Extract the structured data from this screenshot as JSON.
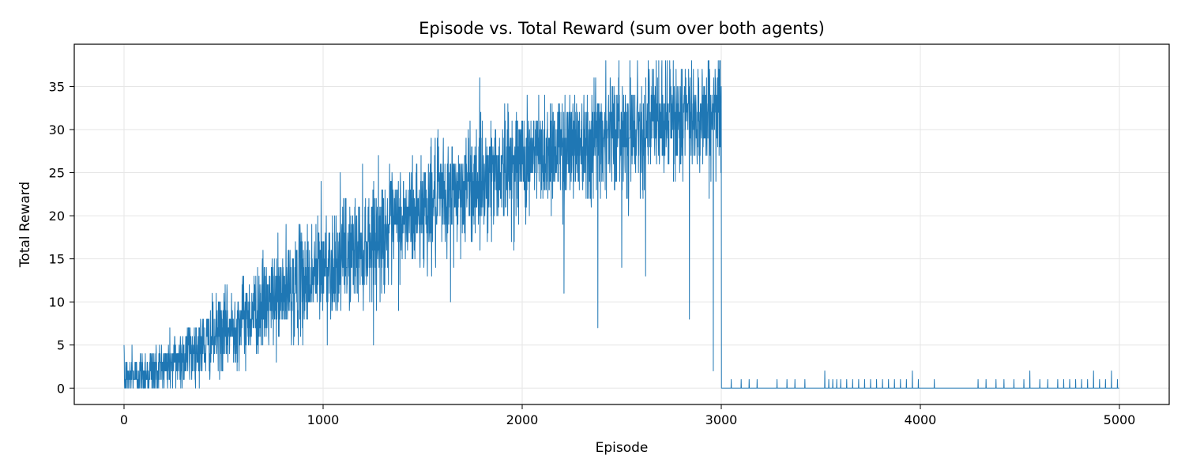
{
  "chart_data": {
    "type": "line",
    "title": "Episode vs. Total Reward (sum over both agents)",
    "xlabel": "Episode",
    "ylabel": "Total Reward",
    "xlim": [
      -250,
      5250
    ],
    "ylim": [
      -1.9,
      39.9
    ],
    "xticks": [
      0,
      1000,
      2000,
      3000,
      4000,
      5000
    ],
    "yticks": [
      0,
      5,
      10,
      15,
      20,
      25,
      30,
      35
    ],
    "grid": true,
    "line_color": "#1f77b4",
    "series": [
      {
        "name": "",
        "x_range": [
          0,
          4999
        ],
        "trend": [
          [
            0,
            1
          ],
          [
            200,
            2.5
          ],
          [
            400,
            5
          ],
          [
            600,
            8
          ],
          [
            800,
            11
          ],
          [
            1000,
            14
          ],
          [
            1200,
            16.5
          ],
          [
            1400,
            19.5
          ],
          [
            1600,
            22
          ],
          [
            1800,
            24.5
          ],
          [
            2000,
            26.5
          ],
          [
            2200,
            28
          ],
          [
            2400,
            29.5
          ],
          [
            2600,
            30.5
          ],
          [
            2800,
            31.5
          ],
          [
            2999,
            32
          ],
          [
            3000,
            0
          ],
          [
            4999,
            0
          ]
        ],
        "noise_sd": [
          [
            0,
            1.3
          ],
          [
            1000,
            3.2
          ],
          [
            2000,
            3.3
          ],
          [
            2999,
            3.3
          ],
          [
            3000,
            0
          ],
          [
            4999,
            0
          ]
        ],
        "notable_points": [
          [
            1,
            4
          ],
          [
            40,
            5
          ],
          [
            990,
            24
          ],
          [
            1640,
            10
          ],
          [
            2210,
            11
          ],
          [
            2300,
            33
          ],
          [
            2380,
            7
          ],
          [
            2420,
            38
          ],
          [
            2500,
            14
          ],
          [
            2620,
            13
          ],
          [
            2720,
            38
          ],
          [
            2840,
            8
          ],
          [
            2960,
            2
          ],
          [
            2995,
            38
          ],
          [
            3000,
            35
          ],
          [
            3001,
            0
          ]
        ],
        "late_spikes": {
          "episodes": [
            3050,
            3100,
            3140,
            3180,
            3280,
            3330,
            3370,
            3420,
            3520,
            3540,
            3560,
            3580,
            3600,
            3630,
            3660,
            3690,
            3720,
            3750,
            3780,
            3810,
            3840,
            3870,
            3900,
            3930,
            3960,
            3990,
            4070,
            4290,
            4330,
            4380,
            4420,
            4470,
            4520,
            4550,
            4600,
            4640,
            4690,
            4720,
            4750,
            4780,
            4810,
            4840,
            4870,
            4900,
            4930,
            4960,
            4990
          ],
          "values": [
            1,
            1,
            1,
            1,
            1,
            1,
            1,
            1,
            2,
            1,
            1,
            1,
            1,
            1,
            1,
            1,
            1,
            1,
            1,
            1,
            1,
            1,
            1,
            1,
            2,
            1,
            1,
            1,
            1,
            1,
            1,
            1,
            1,
            2,
            1,
            1,
            1,
            1,
            1,
            1,
            1,
            1,
            2,
            1,
            1,
            2,
            1
          ]
        }
      }
    ]
  }
}
